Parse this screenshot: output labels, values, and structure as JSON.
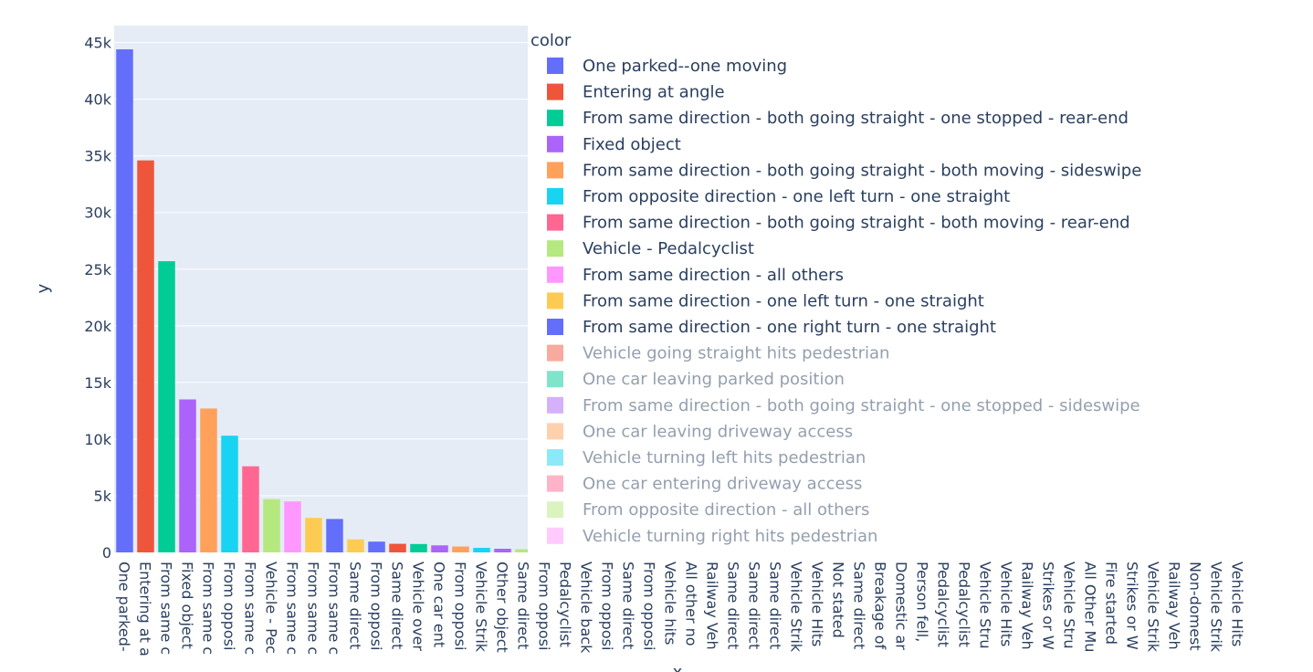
{
  "chart_data": {
    "type": "bar",
    "xlabel": "x",
    "ylabel": "y",
    "ylim": [
      0,
      46500
    ],
    "y_tick_values": [
      0,
      5000,
      10000,
      15000,
      20000,
      25000,
      30000,
      35000,
      40000,
      45000
    ],
    "y_tick_labels": [
      "0",
      "5k",
      "10k",
      "15k",
      "20k",
      "25k",
      "30k",
      "35k",
      "40k",
      "45k"
    ],
    "grid": true,
    "legend_title": "color",
    "legend_position": "right",
    "categories": [
      "One parked--one moving",
      "Entering at angle",
      "From same direction - both going straight - one stopped - rear-end",
      "Fixed object",
      "From same direction - both going straight - both moving - sideswipe",
      "From opposite direction - one left turn - one straight",
      "From same direction - both going straight - both moving - rear-end",
      "Vehicle - Pedalcyclist",
      "From same direction - all others",
      "From same direction - one left turn - one straight",
      "From same direction - one right turn - one straight",
      "Same direction",
      "From opposite direction",
      "Same direction",
      "Vehicle overturned",
      "One car entering",
      "From opposite direction",
      "Vehicle Strikes",
      "Other object",
      "Same direction",
      "From opposite direction",
      "Pedalcyclist",
      "Vehicle backing",
      "From opposite direction",
      "Same direction",
      "From opposite direction",
      "Vehicle hits",
      "All other non",
      "Railway Vehicle",
      "Same direction",
      "Same direction",
      "Same direction",
      "Vehicle Strikes",
      "Vehicle Hits",
      "Not stated",
      "Same direction",
      "Breakage of",
      "Domestic animal",
      "Person fell",
      "Pedalcyclist",
      "Pedalcyclist",
      "Vehicle Strikes",
      "Vehicle Hits",
      "Railway Vehicle",
      "Strikes or Was",
      "Vehicle Strikes",
      "All Other Multi",
      "Fire started",
      "Strikes or Was",
      "Vehicle Strikes",
      "Railway Vehicle",
      "Non-domestic",
      "Vehicle Strikes",
      "Vehicle Hits"
    ],
    "tick_labels_visible": [
      "One parked-",
      "Entering at a",
      "From same c",
      "Fixed object",
      "From same c",
      "From opposi",
      "From same c",
      "Vehicle - Pec",
      "From same c",
      "From same c",
      "From same c",
      "Same direct",
      "From opposi",
      "Same direct",
      "Vehicle over",
      "One car ent",
      "From opposi",
      "Vehicle Strik",
      "Other object",
      "Same direct",
      "From opposi",
      "Pedalcyclist",
      "Vehicle back",
      "From opposi",
      "Same direct",
      "From opposi",
      "Vehicle hits",
      "All other no",
      "Railway Veh",
      "Same direct",
      "Same direct",
      "Same direct",
      "Vehicle Strik",
      "Vehicle Hits",
      "Not stated",
      "Same direct",
      "Breakage of",
      "Domestic ar",
      "Person fell,",
      "Pedalcyclist",
      "Pedalcyclist",
      "Vehicle Stru",
      "Vehicle Hits",
      "Railway Veh",
      "Strikes or W",
      "Vehicle Stru",
      "All Other Mu",
      "Fire started",
      "Strikes or W",
      "Vehicle Strik",
      "Railway Veh",
      "Non-domest",
      "Vehicle Strik",
      "Vehicle Hits"
    ],
    "values": [
      44400,
      34600,
      25700,
      13500,
      12700,
      10300,
      7600,
      4700,
      4500,
      3050,
      2950,
      1150,
      950,
      760,
      740,
      620,
      520,
      400,
      320,
      280,
      120,
      100,
      90,
      80,
      70,
      60,
      55,
      50,
      45,
      40,
      38,
      35,
      32,
      30,
      28,
      26,
      24,
      22,
      20,
      18,
      16,
      14,
      12,
      11,
      10,
      9,
      8,
      7,
      6,
      5,
      4,
      3,
      2,
      1
    ],
    "colors": [
      "#636efa",
      "#EF553B",
      "#00cc96",
      "#ab63fa",
      "#FFA15A",
      "#19d3f3",
      "#FF6692",
      "#B6E880",
      "#FF97FF",
      "#FECB52",
      "#636efa",
      "#FECB52",
      "#636efa",
      "#EF553B",
      "#00cc96",
      "#ab63fa",
      "#FFA15A",
      "#19d3f3",
      "#ab63fa",
      "#B6E880"
    ],
    "legend": [
      {
        "name": "One parked--one moving",
        "color": "#636efa",
        "faded": false
      },
      {
        "name": "Entering at angle",
        "color": "#EF553B",
        "faded": false
      },
      {
        "name": "From same direction - both going straight - one stopped - rear-end",
        "color": "#00cc96",
        "faded": false
      },
      {
        "name": "Fixed object",
        "color": "#ab63fa",
        "faded": false
      },
      {
        "name": "From same direction - both going straight - both moving - sideswipe",
        "color": "#FFA15A",
        "faded": false
      },
      {
        "name": "From opposite direction - one left turn - one straight",
        "color": "#19d3f3",
        "faded": false
      },
      {
        "name": "From same direction - both going straight - both moving - rear-end",
        "color": "#FF6692",
        "faded": false
      },
      {
        "name": "Vehicle - Pedalcyclist",
        "color": "#B6E880",
        "faded": false
      },
      {
        "name": "From same direction - all others",
        "color": "#FF97FF",
        "faded": false
      },
      {
        "name": "From same direction - one left turn - one straight",
        "color": "#FECB52",
        "faded": false
      },
      {
        "name": "From same direction - one right turn - one straight",
        "color": "#636efa",
        "faded": false
      },
      {
        "name": "Vehicle going straight hits pedestrian",
        "color": "#EF553B",
        "faded": true
      },
      {
        "name": "One car leaving parked position",
        "color": "#00cc96",
        "faded": true
      },
      {
        "name": "From same direction - both going straight - one stopped - sideswipe",
        "color": "#ab63fa",
        "faded": true
      },
      {
        "name": "One car leaving driveway access",
        "color": "#FFA15A",
        "faded": true
      },
      {
        "name": "Vehicle turning left hits pedestrian",
        "color": "#19d3f3",
        "faded": true
      },
      {
        "name": "One car entering driveway access",
        "color": "#FF6692",
        "faded": true
      },
      {
        "name": "From opposite direction - all others",
        "color": "#B6E880",
        "faded": true
      },
      {
        "name": "Vehicle turning right hits pedestrian",
        "color": "#FF97FF",
        "faded": true
      }
    ]
  }
}
